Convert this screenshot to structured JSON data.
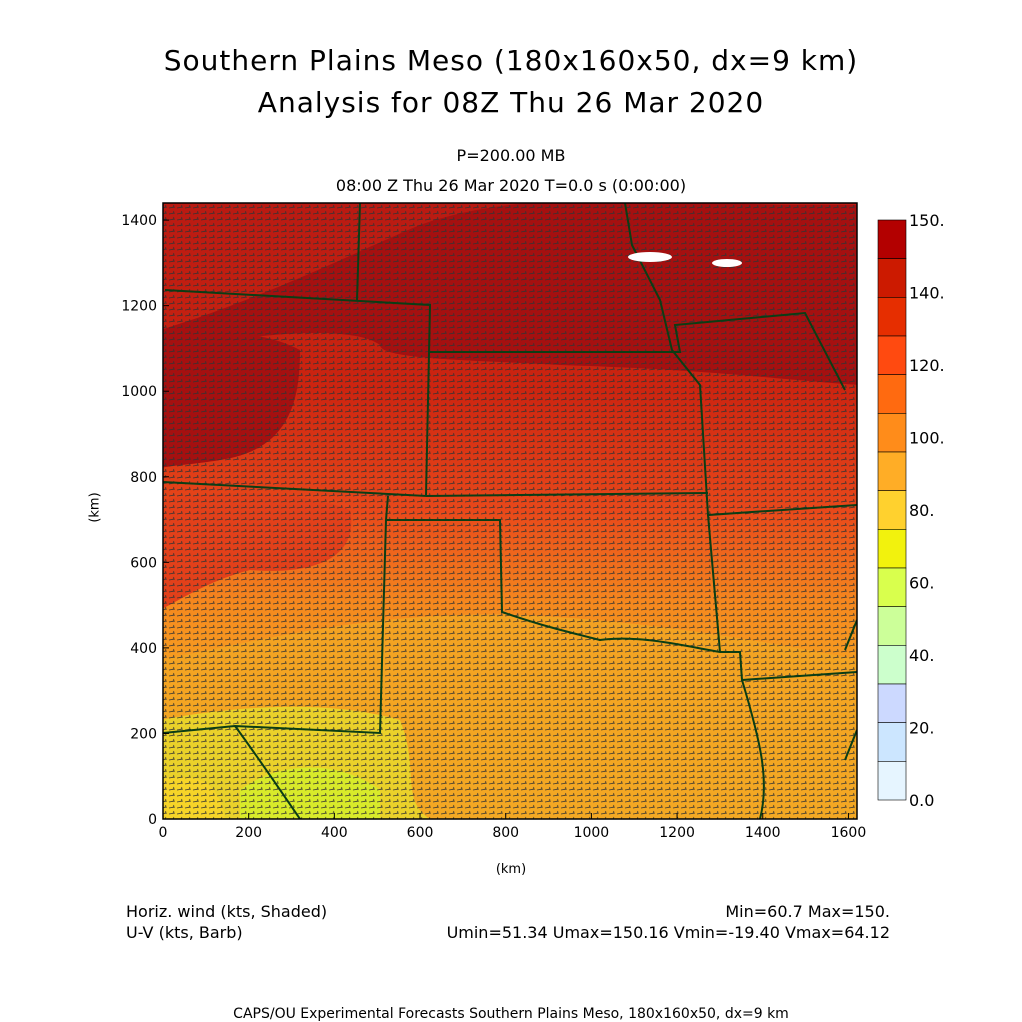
{
  "header": {
    "title_line1": "Southern Plains Meso (180x160x50, dx=9 km)",
    "title_line2": "Analysis for 08Z Thu 26 Mar 2020",
    "level": "P=200.00 MB",
    "time": "08:00 Z Thu 26 Mar 2020    T=0.0 s (0:00:00)"
  },
  "axes": {
    "xlabel": "(km)",
    "ylabel": "(km)",
    "x_ticks": [
      "0",
      "200",
      "400",
      "600",
      "800",
      "1000",
      "1200",
      "1400",
      "1600"
    ],
    "y_ticks": [
      "0",
      "200",
      "400",
      "600",
      "800",
      "1000",
      "1200",
      "1400"
    ],
    "x_range_km": [
      0,
      1620
    ],
    "y_range_km": [
      0,
      1440
    ]
  },
  "colorbar": {
    "labels": [
      "150.",
      "140.",
      "120.",
      "100.",
      "80.",
      "60.",
      "40.",
      "20.",
      "0.0"
    ],
    "colors": [
      "#b30000",
      "#cc1a00",
      "#e62e00",
      "#ff4a10",
      "#ff6a10",
      "#ff8c1a",
      "#ffad26",
      "#ffd12e",
      "#f2f20d",
      "#d9ff4d",
      "#ccff99",
      "#ccffcc",
      "#ccd9ff",
      "#cce6ff",
      "#e6f5ff"
    ]
  },
  "legend": {
    "field_shaded": "Horiz. wind (kts, Shaded)",
    "field_barb": "U-V (kts, Barb)",
    "minmax": "Min=60.7 Max=150.",
    "uv_stats": "Umin=51.34 Umax=150.16 Vmin=-19.40 Vmax=64.12"
  },
  "footer": "CAPS/OU Experimental Forecasts  Southern Plains Meso, 180x160x50, dx=9 km",
  "chart_data": {
    "type": "heatmap",
    "variable": "Horizontal wind speed at 200 mb (kts)",
    "min": 60.7,
    "max": 150.0,
    "u_min": 51.34,
    "u_max": 150.16,
    "v_min": -19.4,
    "v_max": 64.12,
    "x_unit": "km",
    "y_unit": "km"
  }
}
